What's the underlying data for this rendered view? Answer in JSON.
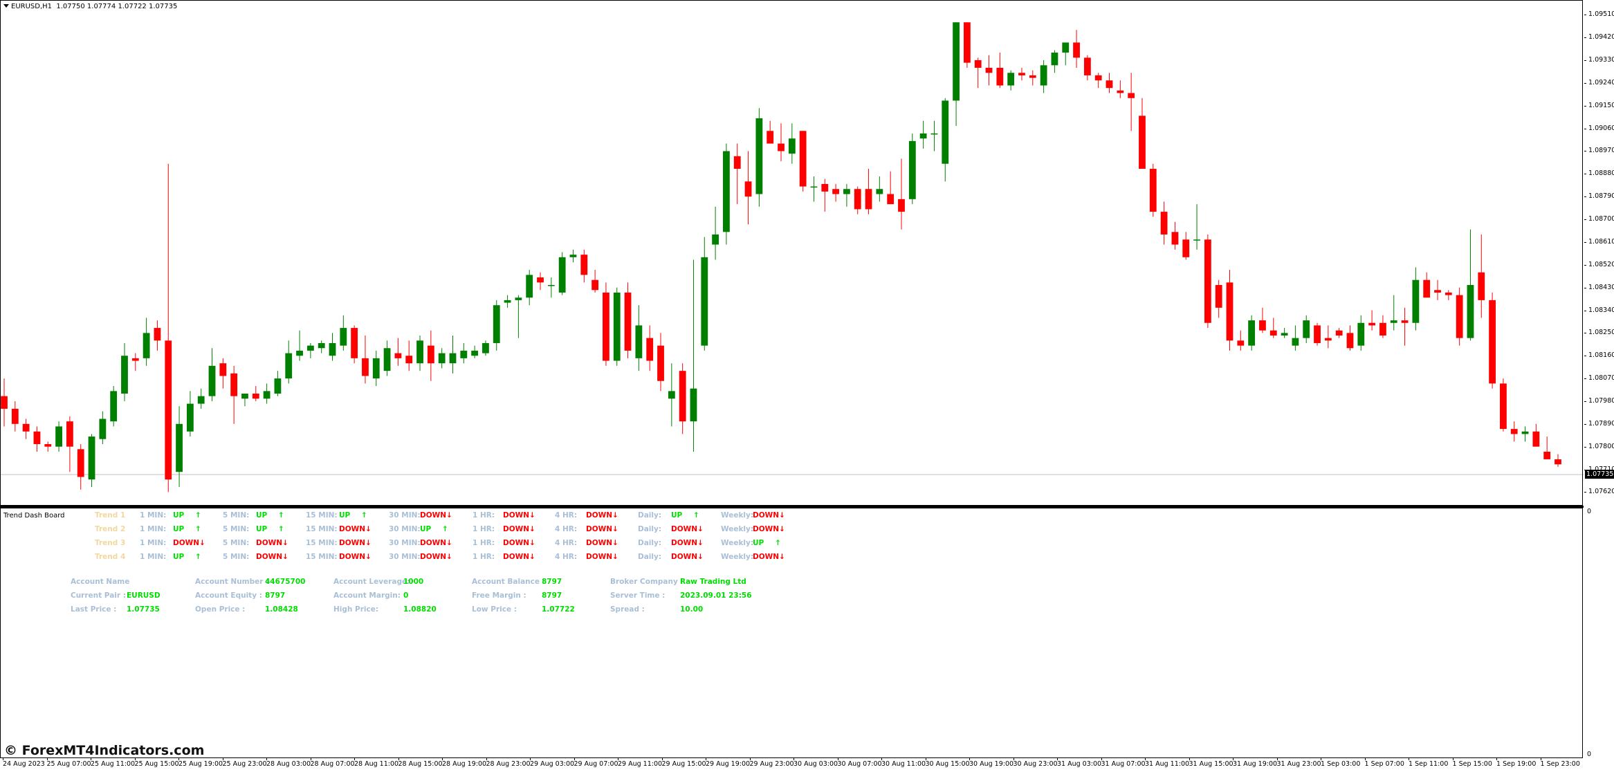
{
  "header": {
    "symbol_timeframe": "EURUSD,H1",
    "ohlc": "1.07750 1.07774 1.07722 1.07735"
  },
  "indicator": {
    "name": "Trend Dash Board",
    "subwindow_scale_top": "0",
    "subwindow_scale_bottom": "0"
  },
  "trend_rows": [
    {
      "trend": "Trend 1",
      "cells": [
        {
          "tf": "1 MIN:",
          "dir": "UP"
        },
        {
          "tf": "5 MIN:",
          "dir": "UP"
        },
        {
          "tf": "15 MIN:",
          "dir": "UP"
        },
        {
          "tf": "30 MIN:",
          "dir": "DOWN"
        },
        {
          "tf": "1 HR:",
          "dir": "DOWN"
        },
        {
          "tf": "4 HR:",
          "dir": "DOWN"
        },
        {
          "tf": "Daily:",
          "dir": "UP"
        },
        {
          "tf": "Weekly:",
          "dir": "DOWN"
        }
      ]
    },
    {
      "trend": "Trend 2",
      "cells": [
        {
          "tf": "1 MIN:",
          "dir": "UP"
        },
        {
          "tf": "5 MIN:",
          "dir": "UP"
        },
        {
          "tf": "15 MIN:",
          "dir": "DOWN"
        },
        {
          "tf": "30 MIN:",
          "dir": "UP"
        },
        {
          "tf": "1 HR:",
          "dir": "DOWN"
        },
        {
          "tf": "4 HR:",
          "dir": "DOWN"
        },
        {
          "tf": "Daily:",
          "dir": "DOWN"
        },
        {
          "tf": "Weekly:",
          "dir": "DOWN"
        }
      ]
    },
    {
      "trend": "Trend 3",
      "cells": [
        {
          "tf": "1 MIN:",
          "dir": "DOWN"
        },
        {
          "tf": "5 MIN:",
          "dir": "DOWN"
        },
        {
          "tf": "15 MIN:",
          "dir": "DOWN"
        },
        {
          "tf": "30 MIN:",
          "dir": "DOWN"
        },
        {
          "tf": "1 HR:",
          "dir": "DOWN"
        },
        {
          "tf": "4 HR:",
          "dir": "DOWN"
        },
        {
          "tf": "Daily:",
          "dir": "DOWN"
        },
        {
          "tf": "Weekly:",
          "dir": "UP"
        }
      ]
    },
    {
      "trend": "Trend 4",
      "cells": [
        {
          "tf": "1 MIN:",
          "dir": "UP"
        },
        {
          "tf": "5 MIN:",
          "dir": "DOWN"
        },
        {
          "tf": "15 MIN:",
          "dir": "DOWN"
        },
        {
          "tf": "30 MIN:",
          "dir": "DOWN"
        },
        {
          "tf": "1 HR:",
          "dir": "DOWN"
        },
        {
          "tf": "4 HR:",
          "dir": "DOWN"
        },
        {
          "tf": "Daily:",
          "dir": "DOWN"
        },
        {
          "tf": "Weekly:",
          "dir": "DOWN"
        }
      ]
    }
  ],
  "account_info": [
    [
      {
        "label": "Account Name",
        "value": ""
      },
      {
        "label": "Current Pair :",
        "value": "EURUSD"
      },
      {
        "label": "Last Price :",
        "value": "1.07735"
      }
    ],
    [
      {
        "label": "Account Number :",
        "value": "44675700"
      },
      {
        "label": "Account Equity :",
        "value": "8797"
      },
      {
        "label": "Open Price :",
        "value": "1.08428"
      }
    ],
    [
      {
        "label": "Account Leverage:",
        "value": "1000"
      },
      {
        "label": "Account Margin:",
        "value": "0"
      },
      {
        "label": "High Price:",
        "value": "1.08820"
      }
    ],
    [
      {
        "label": "Account Balance :",
        "value": "8797"
      },
      {
        "label": "Free Margin :",
        "value": "8797"
      },
      {
        "label": "Low Price :",
        "value": "1.07722"
      }
    ],
    [
      {
        "label": "Broker Company :",
        "value": "Raw Trading Ltd"
      },
      {
        "label": "Server Time :",
        "value": "2023.09.01 23:56"
      },
      {
        "label": "Spread :",
        "value": "10.00"
      }
    ]
  ],
  "watermark": "© ForexMT4Indicators.com",
  "current_price_label": "1.07735",
  "price_axis_labels": [
    "1.09510",
    "1.09420",
    "1.09330",
    "1.09240",
    "1.09150",
    "1.09060",
    "1.08970",
    "1.08880",
    "1.08790",
    "1.08700",
    "1.08610",
    "1.08520",
    "1.08430",
    "1.08340",
    "1.08250",
    "1.08160",
    "1.08070",
    "1.07980",
    "1.07890",
    "1.07800",
    "1.07710",
    "1.07620"
  ],
  "time_axis_labels": [
    "24 Aug 2023",
    "25 Aug 07:00",
    "25 Aug 11:00",
    "25 Aug 15:00",
    "25 Aug 19:00",
    "25 Aug 23:00",
    "28 Aug 03:00",
    "28 Aug 07:00",
    "28 Aug 11:00",
    "28 Aug 15:00",
    "28 Aug 19:00",
    "28 Aug 23:00",
    "29 Aug 03:00",
    "29 Aug 07:00",
    "29 Aug 11:00",
    "29 Aug 15:00",
    "29 Aug 19:00",
    "29 Aug 23:00",
    "30 Aug 03:00",
    "30 Aug 07:00",
    "30 Aug 11:00",
    "30 Aug 15:00",
    "30 Aug 19:00",
    "30 Aug 23:00",
    "31 Aug 03:00",
    "31 Aug 07:00",
    "31 Aug 11:00",
    "31 Aug 15:00",
    "31 Aug 19:00",
    "31 Aug 23:00",
    "1 Sep 03:00",
    "1 Sep 07:00",
    "1 Sep 11:00",
    "1 Sep 15:00",
    "1 Sep 19:00",
    "1 Sep 23:00"
  ],
  "colors": {
    "bull": "#008000",
    "bear": "#ff0000",
    "label": "#a9bfd6",
    "trend_label": "#f2d7a0",
    "up": "#00dd00",
    "down": "#ff0000"
  },
  "chart_data": {
    "type": "candlestick",
    "symbol": "EURUSD",
    "timeframe": "H1",
    "ylim": [
      1.0758,
      1.0953
    ],
    "candles": [
      [
        1.08,
        1.0807,
        1.0788,
        1.0795
      ],
      [
        1.0795,
        1.0798,
        1.0786,
        1.0789
      ],
      [
        1.0789,
        1.0791,
        1.0783,
        1.0786
      ],
      [
        1.0786,
        1.0788,
        1.0778,
        1.0781
      ],
      [
        1.0781,
        1.0782,
        1.0778,
        1.078
      ],
      [
        1.078,
        1.079,
        1.0778,
        1.0788
      ],
      [
        1.079,
        1.0792,
        1.077,
        1.078
      ],
      [
        1.0779,
        1.0781,
        1.0763,
        1.0768
      ],
      [
        1.0767,
        1.0785,
        1.0764,
        1.0784
      ],
      [
        1.0783,
        1.0794,
        1.0781,
        1.0791
      ],
      [
        1.079,
        1.0804,
        1.0788,
        1.0802
      ],
      [
        1.0801,
        1.0821,
        1.0798,
        1.0816
      ],
      [
        1.0815,
        1.0817,
        1.081,
        1.0814
      ],
      [
        1.0815,
        1.0831,
        1.0812,
        1.0825
      ],
      [
        1.0827,
        1.083,
        1.0818,
        1.0822
      ],
      [
        1.0822,
        1.0892,
        1.0762,
        1.0767
      ],
      [
        1.077,
        1.0796,
        1.0764,
        1.0789
      ],
      [
        1.0786,
        1.0802,
        1.0784,
        1.0797
      ],
      [
        1.0797,
        1.0803,
        1.0795,
        1.08
      ],
      [
        1.08,
        1.0819,
        1.0798,
        1.0812
      ],
      [
        1.0813,
        1.0815,
        1.0803,
        1.0808
      ],
      [
        1.0809,
        1.0812,
        1.0789,
        1.08
      ],
      [
        1.0799,
        1.0801,
        1.0796,
        1.0801
      ],
      [
        1.0801,
        1.0804,
        1.0798,
        1.0799
      ],
      [
        1.0799,
        1.0805,
        1.0797,
        1.0802
      ],
      [
        1.0801,
        1.081,
        1.08,
        1.0807
      ],
      [
        1.0807,
        1.0822,
        1.0805,
        1.0817
      ],
      [
        1.0816,
        1.0826,
        1.0814,
        1.0818
      ],
      [
        1.0818,
        1.0821,
        1.0815,
        1.082
      ],
      [
        1.0819,
        1.0822,
        1.0817,
        1.0821
      ],
      [
        1.0816,
        1.0825,
        1.0814,
        1.0821
      ],
      [
        1.082,
        1.0832,
        1.0818,
        1.0827
      ],
      [
        1.0827,
        1.0828,
        1.0813,
        1.0815
      ],
      [
        1.0815,
        1.0824,
        1.0805,
        1.0808
      ],
      [
        1.0807,
        1.0818,
        1.0804,
        1.0815
      ],
      [
        1.081,
        1.0822,
        1.0808,
        1.0819
      ],
      [
        1.0817,
        1.0823,
        1.0812,
        1.0815
      ],
      [
        1.0816,
        1.0822,
        1.081,
        1.0813
      ],
      [
        1.0813,
        1.0824,
        1.081,
        1.0822
      ],
      [
        1.082,
        1.0826,
        1.0806,
        1.0813
      ],
      [
        1.0813,
        1.0819,
        1.0811,
        1.0817
      ],
      [
        1.0813,
        1.0824,
        1.0809,
        1.0817
      ],
      [
        1.0815,
        1.0821,
        1.0813,
        1.0818
      ],
      [
        1.0816,
        1.082,
        1.0815,
        1.0818
      ],
      [
        1.0817,
        1.0822,
        1.0816,
        1.0821
      ],
      [
        1.0821,
        1.0838,
        1.0818,
        1.0836
      ],
      [
        1.0837,
        1.084,
        1.0835,
        1.0838
      ],
      [
        1.0838,
        1.084,
        1.0823,
        1.0839
      ],
      [
        1.0839,
        1.085,
        1.0836,
        1.0848
      ],
      [
        1.0847,
        1.0849,
        1.0842,
        1.0845
      ],
      [
        1.0844,
        1.0847,
        1.0839,
        1.0844
      ],
      [
        1.0841,
        1.0857,
        1.084,
        1.0855
      ],
      [
        1.0855,
        1.0858,
        1.0853,
        1.0856
      ],
      [
        1.0856,
        1.0858,
        1.0845,
        1.0848
      ],
      [
        1.0846,
        1.085,
        1.0841,
        1.0842
      ],
      [
        1.0841,
        1.0845,
        1.0812,
        1.0814
      ],
      [
        1.0814,
        1.0843,
        1.0812,
        1.0841
      ],
      [
        1.0841,
        1.0845,
        1.0815,
        1.0818
      ],
      [
        1.0815,
        1.0836,
        1.081,
        1.0828
      ],
      [
        1.0823,
        1.0828,
        1.081,
        1.0814
      ],
      [
        1.082,
        1.0825,
        1.0802,
        1.0806
      ],
      [
        1.0799,
        1.0813,
        1.0788,
        1.0802
      ],
      [
        1.081,
        1.0813,
        1.0785,
        1.079
      ],
      [
        1.079,
        1.0854,
        1.0778,
        1.0803
      ],
      [
        1.082,
        1.0863,
        1.0818,
        1.0855
      ],
      [
        1.086,
        1.0875,
        1.0854,
        1.0864
      ],
      [
        1.0865,
        1.09,
        1.086,
        1.0897
      ],
      [
        1.0895,
        1.09,
        1.0876,
        1.089
      ],
      [
        1.0885,
        1.0897,
        1.0868,
        1.0879
      ],
      [
        1.088,
        1.0914,
        1.0875,
        1.091
      ],
      [
        1.0905,
        1.0909,
        1.0901,
        1.09
      ],
      [
        1.09,
        1.0908,
        1.0893,
        1.0897
      ],
      [
        1.0896,
        1.0908,
        1.0892,
        1.0902
      ],
      [
        1.0905,
        1.0905,
        1.0881,
        1.0883
      ],
      [
        1.0883,
        1.0887,
        1.0877,
        1.0883
      ],
      [
        1.0884,
        1.0886,
        1.0873,
        1.0881
      ],
      [
        1.0882,
        1.0884,
        1.0877,
        1.088
      ],
      [
        1.088,
        1.0884,
        1.0875,
        1.0882
      ],
      [
        1.0882,
        1.0883,
        1.0872,
        1.0874
      ],
      [
        1.0882,
        1.089,
        1.0872,
        1.0874
      ],
      [
        1.088,
        1.0887,
        1.0877,
        1.0882
      ],
      [
        1.088,
        1.0889,
        1.0877,
        1.0876
      ],
      [
        1.0878,
        1.0894,
        1.0866,
        1.0873
      ],
      [
        1.0878,
        1.0904,
        1.0876,
        1.0901
      ],
      [
        1.0902,
        1.0909,
        1.0898,
        1.0904
      ],
      [
        1.0904,
        1.0909,
        1.0897,
        1.0904
      ],
      [
        1.0892,
        1.0918,
        1.0885,
        1.0917
      ],
      [
        1.0917,
        1.0948,
        1.0907,
        1.0948
      ],
      [
        1.0948,
        1.0948,
        1.093,
        1.0932
      ],
      [
        1.0933,
        1.0934,
        1.0922,
        1.093
      ],
      [
        1.093,
        1.0935,
        1.0923,
        1.0928
      ],
      [
        1.093,
        1.0936,
        1.0922,
        1.0923
      ],
      [
        1.0923,
        1.0929,
        1.0921,
        1.0928
      ],
      [
        1.0928,
        1.093,
        1.0925,
        1.0927
      ],
      [
        1.0927,
        1.0929,
        1.0923,
        1.0926
      ],
      [
        1.0923,
        1.0933,
        1.092,
        1.0931
      ],
      [
        1.0931,
        1.0937,
        1.0928,
        1.0936
      ],
      [
        1.0936,
        1.094,
        1.0931,
        1.094
      ],
      [
        1.094,
        1.0945,
        1.093,
        1.0934
      ],
      [
        1.0934,
        1.0935,
        1.0925,
        1.0927
      ],
      [
        1.0927,
        1.0928,
        1.0922,
        1.0925
      ],
      [
        1.0925,
        1.0928,
        1.092,
        1.0922
      ],
      [
        1.0921,
        1.0925,
        1.0918,
        1.092
      ],
      [
        1.092,
        1.0928,
        1.0905,
        1.0918
      ],
      [
        1.0911,
        1.0918,
        1.089,
        1.089
      ],
      [
        1.089,
        1.0892,
        1.0871,
        1.0873
      ],
      [
        1.0873,
        1.0877,
        1.086,
        1.0864
      ],
      [
        1.0865,
        1.0869,
        1.0858,
        1.086
      ],
      [
        1.0862,
        1.0865,
        1.0854,
        1.0855
      ],
      [
        1.0862,
        1.0876,
        1.0858,
        1.0862
      ],
      [
        1.0862,
        1.0864,
        1.0827,
        1.0829
      ],
      [
        1.0844,
        1.0846,
        1.0831,
        1.0835
      ],
      [
        1.0845,
        1.085,
        1.0818,
        1.0822
      ],
      [
        1.0822,
        1.0826,
        1.0818,
        1.082
      ],
      [
        1.082,
        1.0832,
        1.0818,
        1.083
      ],
      [
        1.083,
        1.0835,
        1.0825,
        1.0826
      ],
      [
        1.0826,
        1.0831,
        1.0823,
        1.0824
      ],
      [
        1.0824,
        1.0827,
        1.0823,
        1.0825
      ],
      [
        1.082,
        1.0828,
        1.0818,
        1.0823
      ],
      [
        1.0823,
        1.0832,
        1.0821,
        1.083
      ],
      [
        1.0828,
        1.0829,
        1.082,
        1.0821
      ],
      [
        1.0823,
        1.0828,
        1.0819,
        1.0822
      ],
      [
        1.0826,
        1.0827,
        1.0823,
        1.0824
      ],
      [
        1.0825,
        1.0828,
        1.0818,
        1.0819
      ],
      [
        1.082,
        1.0832,
        1.0818,
        1.0829
      ],
      [
        1.0829,
        1.0834,
        1.0826,
        1.0828
      ],
      [
        1.0829,
        1.0832,
        1.0823,
        1.0824
      ],
      [
        1.0829,
        1.084,
        1.0826,
        1.083
      ],
      [
        1.083,
        1.0835,
        1.082,
        1.0829
      ],
      [
        1.0829,
        1.0851,
        1.0826,
        1.0846
      ],
      [
        1.0846,
        1.0849,
        1.0839,
        1.0839
      ],
      [
        1.0842,
        1.0846,
        1.0838,
        1.0841
      ],
      [
        1.0841,
        1.0842,
        1.0838,
        1.084
      ],
      [
        1.084,
        1.0843,
        1.082,
        1.0823
      ],
      [
        1.0823,
        1.0866,
        1.0822,
        1.0844
      ],
      [
        1.0849,
        1.0864,
        1.0831,
        1.0838
      ],
      [
        1.0838,
        1.0841,
        1.0803,
        1.0805
      ],
      [
        1.0805,
        1.0807,
        1.0786,
        1.0787
      ],
      [
        1.0787,
        1.079,
        1.0782,
        1.0785
      ],
      [
        1.0785,
        1.0788,
        1.0782,
        1.0786
      ],
      [
        1.0786,
        1.0789,
        1.0781,
        1.078
      ],
      [
        1.0778,
        1.0784,
        1.0775,
        1.0775
      ],
      [
        1.0775,
        1.0777,
        1.0772,
        1.0773
      ]
    ]
  }
}
